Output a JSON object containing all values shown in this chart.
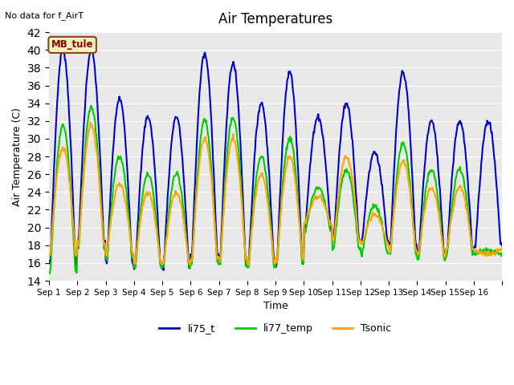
{
  "title": "Air Temperatures",
  "top_left_text": "No data for f_AirT",
  "xlabel": "Time",
  "ylabel": "Air Temperature (C)",
  "ylim": [
    14,
    42
  ],
  "yticks": [
    14,
    16,
    18,
    20,
    22,
    24,
    26,
    28,
    30,
    32,
    34,
    36,
    38,
    40,
    42
  ],
  "bg_color": "#e8e8e8",
  "legend_label": "MB_tule",
  "legend_box_color": "#f5f0c0",
  "legend_box_border": "#8b4513",
  "legend_text_color": "#8b0000",
  "series": {
    "li75_t": {
      "color": "#0000cc",
      "lw": 1.5
    },
    "li77_temp": {
      "color": "#00cc00",
      "lw": 1.5
    },
    "Tsonic": {
      "color": "#ffa500",
      "lw": 1.5
    }
  },
  "xtick_labels": [
    "Sep 1",
    "Sep 2",
    "Sep 3",
    "Sep 4",
    "Sep 5",
    "Sep 6",
    "Sep 7",
    "Sep 8",
    "Sep 9",
    "Sep 10",
    "Sep 11",
    "Sep 12",
    "Sep 13",
    "Sep 14",
    "Sep 15",
    "Sep 16"
  ],
  "num_days": 16
}
